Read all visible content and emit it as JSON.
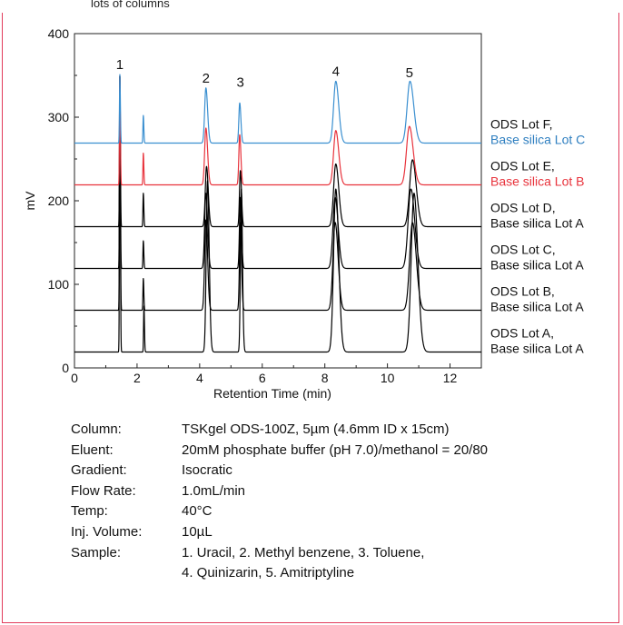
{
  "caption_fragment": "lots of columns",
  "chart_data": {
    "type": "line",
    "xlabel": "Retention Time (min)",
    "ylabel": "mV",
    "xlim": [
      0,
      13
    ],
    "ylim": [
      0,
      400
    ],
    "xticks": [
      "0",
      "2",
      "4",
      "6",
      "8",
      "10",
      "12"
    ],
    "yticks": [
      "0",
      "100",
      "200",
      "300",
      "400"
    ],
    "grid": false,
    "peak_labels": [
      {
        "label": "1",
        "x": 1.45
      },
      {
        "label": "2",
        "x": 4.2
      },
      {
        "label": "3",
        "x": 5.3
      },
      {
        "label": "4",
        "x": 8.35
      },
      {
        "label": "5",
        "x": 10.7
      }
    ],
    "series": [
      {
        "line1": "ODS Lot A,",
        "line2": "Base silica Lot A",
        "color": "#000000",
        "label_color": "#111111",
        "baseline": 19,
        "shift": 0.08,
        "peaks": [
          [
            1.45,
            330,
            0.012
          ],
          [
            2.22,
            55,
            0.012
          ],
          [
            4.25,
            205,
            0.04
          ],
          [
            5.33,
            195,
            0.028
          ],
          [
            8.35,
            195,
            0.07
          ],
          [
            10.85,
            190,
            0.09
          ]
        ]
      },
      {
        "line1": "ODS Lot B,",
        "line2": "Base silica Lot A",
        "color": "#000000",
        "label_color": "#111111",
        "baseline": 69,
        "shift": 0.02,
        "peaks": [
          [
            1.45,
            280,
            0.012
          ],
          [
            2.2,
            38,
            0.012
          ],
          [
            4.2,
            108,
            0.04
          ],
          [
            5.3,
            105,
            0.028
          ],
          [
            8.33,
            105,
            0.07
          ],
          [
            10.8,
            105,
            0.09
          ]
        ]
      },
      {
        "line1": "ODS Lot C,",
        "line2": "Base silica Lot A",
        "color": "#000000",
        "label_color": "#111111",
        "baseline": 119,
        "shift": 0.0,
        "peaks": [
          [
            1.45,
            230,
            0.012
          ],
          [
            2.2,
            33,
            0.012
          ],
          [
            4.2,
            90,
            0.04
          ],
          [
            5.3,
            85,
            0.028
          ],
          [
            8.33,
            85,
            0.07
          ],
          [
            10.75,
            95,
            0.09
          ]
        ]
      },
      {
        "line1": "ODS Lot D,",
        "line2": "Base silica Lot A",
        "color": "#000000",
        "label_color": "#111111",
        "baseline": 169,
        "shift": 0.02,
        "peaks": [
          [
            1.45,
            180,
            0.012
          ],
          [
            2.2,
            40,
            0.012
          ],
          [
            4.22,
            72,
            0.04
          ],
          [
            5.3,
            67,
            0.028
          ],
          [
            8.35,
            75,
            0.07
          ],
          [
            10.8,
            80,
            0.09
          ]
        ]
      },
      {
        "line1": "ODS Lot E,",
        "line2": "Base silica Lot B",
        "color": "#e8333c",
        "label_color": "#e8333c",
        "baseline": 219,
        "shift": 0.0,
        "peaks": [
          [
            1.45,
            130,
            0.012
          ],
          [
            2.2,
            38,
            0.012
          ],
          [
            4.2,
            68,
            0.04
          ],
          [
            5.28,
            60,
            0.028
          ],
          [
            8.35,
            65,
            0.07
          ],
          [
            10.7,
            70,
            0.09
          ]
        ]
      },
      {
        "line1": "ODS Lot F,",
        "line2": "Base silica Lot C",
        "color": "#3a8fd0",
        "label_color": "#2f7fc0",
        "baseline": 269,
        "shift": 0.0,
        "peaks": [
          [
            1.45,
            82,
            0.012
          ],
          [
            2.2,
            33,
            0.012
          ],
          [
            4.2,
            66,
            0.04
          ],
          [
            5.28,
            48,
            0.028
          ],
          [
            8.35,
            74,
            0.07
          ],
          [
            10.72,
            74,
            0.09
          ]
        ]
      }
    ]
  },
  "conditions": [
    {
      "label": "Column:",
      "value": "TSKgel ODS-100Z, 5µm (4.6mm ID x 15cm)"
    },
    {
      "label": "Eluent:",
      "value": "20mM phosphate buffer (pH 7.0)/methanol = 20/80"
    },
    {
      "label": "Gradient:",
      "value": "Isocratic"
    },
    {
      "label": "Flow Rate:",
      "value": "1.0mL/min"
    },
    {
      "label": "Temp:",
      "value": "40°C"
    },
    {
      "label": "Inj. Volume:",
      "value": "10µL"
    },
    {
      "label": "Sample:",
      "value": "1. Uracil, 2. Methyl benzene, 3. Toluene,"
    },
    {
      "label": "",
      "value": "4. Quinizarin, 5. Amitriptyline"
    }
  ]
}
